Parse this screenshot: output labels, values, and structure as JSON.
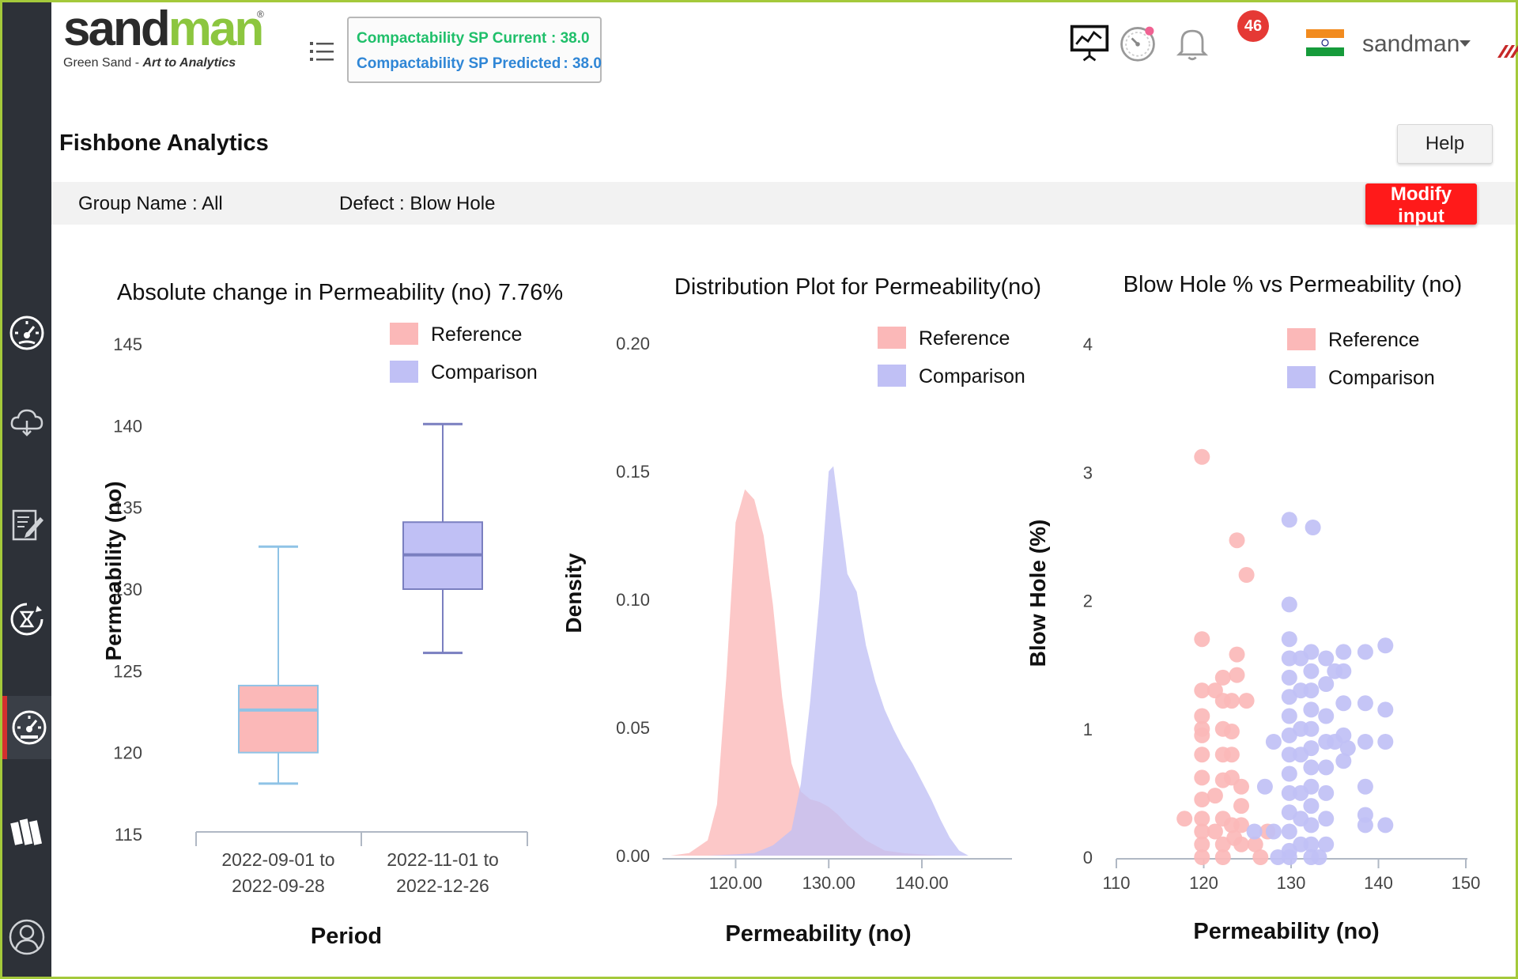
{
  "header": {
    "logo_word_a": "sand",
    "logo_word_b": "man",
    "logo_reg": "®",
    "logo_tag_plain": "Green Sand - ",
    "logo_tag_italic": "Art to Analytics",
    "sp_current_label": "Compactability SP Current",
    "sp_current_sep": ": 38.0",
    "sp_predicted_label": "Compactability SP Predicted",
    "sp_predicted_sep": ": 38.0",
    "notifications_count": "46",
    "user_name": "sandman"
  },
  "page": {
    "title": "Fishbone Analytics",
    "help_label": "Help",
    "group_name": "Group Name : All",
    "defect": "Defect : Blow Hole",
    "modify_label": "Modify input"
  },
  "colors": {
    "reference": "#fbb8b8",
    "comparison": "#c0c0f5",
    "accent": "#8cc63f",
    "badge": "#e53935",
    "modify": "#ff1a1a"
  },
  "sidebar": {
    "items": [
      {
        "icon": "dashboard-gauge-icon"
      },
      {
        "icon": "cloud-upload-icon"
      },
      {
        "icon": "edit-report-icon"
      },
      {
        "icon": "cycle-timer-icon"
      },
      {
        "icon": "analytics-gauge-icon",
        "active": true
      },
      {
        "icon": "books-icon"
      },
      {
        "icon": "user-profile-icon"
      }
    ]
  },
  "chart_data": [
    {
      "type": "box",
      "title": "Absolute change in Permeability (no) 7.76%",
      "xlabel": "Period",
      "ylabel": "Permeability (no)",
      "ylim": [
        115,
        145
      ],
      "yticks": [
        115,
        120,
        125,
        130,
        135,
        140,
        145
      ],
      "categories": [
        "2022-09-01 to 2022-09-28",
        "2022-11-01 to 2022-12-26"
      ],
      "category_lines": [
        [
          "2022-09-01 to",
          "2022-09-28"
        ],
        [
          "2022-11-01 to",
          "2022-12-26"
        ]
      ],
      "legend": [
        "Reference",
        "Comparison"
      ],
      "legend_position": "top-right",
      "series": [
        {
          "name": "Reference",
          "min": 118.1,
          "q1": 120.0,
          "median": 122.6,
          "q3": 124.1,
          "max": 132.6
        },
        {
          "name": "Comparison",
          "min": 126.1,
          "q1": 130.0,
          "median": 132.1,
          "q3": 134.1,
          "max": 140.1
        }
      ]
    },
    {
      "type": "area",
      "title": "Distribution Plot for Permeability(no)",
      "xlabel": "Permeability (no)",
      "ylabel": "Density",
      "xlim": [
        113,
        149
      ],
      "ylim": [
        0,
        0.2
      ],
      "xticks": [
        "120.00",
        "130.00",
        "140.00"
      ],
      "yticks": [
        "0.00",
        "0.05",
        "0.10",
        "0.15",
        "0.20"
      ],
      "legend": [
        "Reference",
        "Comparison"
      ],
      "legend_position": "top-right",
      "series": [
        {
          "name": "Reference",
          "x": [
            113,
            115,
            117,
            118,
            119,
            120,
            121,
            122,
            123,
            124,
            125,
            126,
            127,
            128,
            129,
            130,
            131,
            132,
            134,
            136,
            138,
            140,
            142
          ],
          "y": [
            0,
            0.001,
            0.006,
            0.02,
            0.07,
            0.13,
            0.143,
            0.139,
            0.125,
            0.098,
            0.062,
            0.036,
            0.025,
            0.022,
            0.021,
            0.019,
            0.016,
            0.012,
            0.006,
            0.002,
            0.001,
            0.0005,
            0
          ]
        },
        {
          "name": "Comparison",
          "x": [
            117,
            120,
            122,
            124,
            126,
            127,
            128,
            129,
            129.5,
            130,
            130.5,
            131,
            132,
            133,
            134,
            135,
            136,
            137,
            138,
            139,
            140,
            141,
            142,
            143,
            144,
            145
          ],
          "y": [
            0,
            0.0005,
            0.001,
            0.004,
            0.01,
            0.028,
            0.06,
            0.1,
            0.125,
            0.15,
            0.152,
            0.138,
            0.11,
            0.103,
            0.082,
            0.068,
            0.057,
            0.049,
            0.042,
            0.036,
            0.029,
            0.022,
            0.014,
            0.007,
            0.002,
            0
          ]
        }
      ]
    },
    {
      "type": "scatter",
      "title": "Blow Hole % vs Permeability (no)",
      "xlabel": "Permeability (no)",
      "ylabel": "Blow Hole (%)",
      "xlim": [
        110,
        150
      ],
      "ylim": [
        0,
        4
      ],
      "xticks": [
        110,
        120,
        130,
        140,
        150
      ],
      "yticks": [
        0,
        1,
        2,
        3,
        4
      ],
      "legend": [
        "Reference",
        "Comparison"
      ],
      "legend_position": "top-right",
      "series": [
        {
          "name": "Reference",
          "points": [
            [
              119.8,
              3.12
            ],
            [
              123.8,
              2.47
            ],
            [
              124.9,
              2.2
            ],
            [
              119.8,
              1.7
            ],
            [
              119.8,
              1.3
            ],
            [
              121.3,
              1.3
            ],
            [
              122.2,
              1.4
            ],
            [
              123.8,
              1.42
            ],
            [
              123.8,
              1.58
            ],
            [
              122.2,
              1.22
            ],
            [
              123.2,
              1.22
            ],
            [
              124.9,
              1.22
            ],
            [
              119.8,
              1.0
            ],
            [
              119.8,
              0.95
            ],
            [
              122.2,
              1.0
            ],
            [
              123.2,
              0.98
            ],
            [
              119.8,
              0.8
            ],
            [
              119.8,
              0.62
            ],
            [
              122.2,
              0.8
            ],
            [
              123.2,
              0.62
            ],
            [
              124.3,
              0.55
            ],
            [
              124.3,
              0.4
            ],
            [
              119.8,
              0.45
            ],
            [
              119.8,
              0.3
            ],
            [
              119.8,
              0.2
            ],
            [
              119.8,
              0.1
            ],
            [
              119.8,
              0.0
            ],
            [
              121.3,
              0.2
            ],
            [
              122.2,
              0.3
            ],
            [
              123.2,
              0.25
            ],
            [
              124.3,
              0.25
            ],
            [
              117.8,
              0.3
            ],
            [
              122.2,
              0.1
            ],
            [
              122.2,
              0.0
            ],
            [
              123.5,
              0.15
            ],
            [
              124.3,
              0.1
            ],
            [
              125.9,
              0.1
            ],
            [
              126.5,
              0.0
            ],
            [
              127.3,
              0.2
            ],
            [
              122.2,
              0.6
            ],
            [
              123.2,
              0.8
            ],
            [
              119.8,
              1.1
            ],
            [
              121.3,
              0.48
            ]
          ]
        },
        {
          "name": "Comparison",
          "points": [
            [
              129.8,
              2.63
            ],
            [
              132.5,
              2.57
            ],
            [
              129.8,
              1.97
            ],
            [
              129.8,
              1.7
            ],
            [
              129.8,
              1.55
            ],
            [
              129.8,
              1.4
            ],
            [
              129.8,
              1.25
            ],
            [
              129.8,
              1.1
            ],
            [
              129.8,
              0.95
            ],
            [
              129.8,
              0.8
            ],
            [
              129.8,
              0.65
            ],
            [
              129.8,
              0.5
            ],
            [
              129.8,
              0.35
            ],
            [
              129.8,
              0.2
            ],
            [
              129.8,
              0.05
            ],
            [
              129.8,
              0.0
            ],
            [
              132.3,
              1.6
            ],
            [
              132.3,
              1.45
            ],
            [
              132.3,
              1.3
            ],
            [
              132.3,
              1.15
            ],
            [
              132.3,
              1.0
            ],
            [
              132.3,
              0.85
            ],
            [
              132.3,
              0.7
            ],
            [
              132.3,
              0.55
            ],
            [
              132.3,
              0.4
            ],
            [
              132.3,
              0.25
            ],
            [
              132.3,
              0.1
            ],
            [
              132.3,
              0.0
            ],
            [
              131.1,
              1.55
            ],
            [
              131.1,
              1.3
            ],
            [
              131.1,
              1.0
            ],
            [
              131.1,
              0.8
            ],
            [
              131.1,
              0.5
            ],
            [
              131.1,
              0.3
            ],
            [
              131.1,
              0.1
            ],
            [
              134.0,
              1.55
            ],
            [
              134.0,
              1.35
            ],
            [
              134.0,
              1.1
            ],
            [
              134.0,
              0.9
            ],
            [
              134.0,
              0.7
            ],
            [
              134.0,
              0.5
            ],
            [
              134.0,
              0.3
            ],
            [
              134.0,
              0.1
            ],
            [
              136.0,
              1.6
            ],
            [
              136.0,
              1.45
            ],
            [
              136.0,
              1.2
            ],
            [
              136.0,
              0.95
            ],
            [
              136.0,
              0.75
            ],
            [
              135.0,
              1.45
            ],
            [
              135.0,
              0.9
            ],
            [
              136.5,
              0.85
            ],
            [
              138.5,
              1.6
            ],
            [
              138.5,
              1.2
            ],
            [
              138.5,
              0.9
            ],
            [
              138.5,
              0.55
            ],
            [
              138.5,
              0.33
            ],
            [
              138.5,
              0.25
            ],
            [
              140.8,
              1.65
            ],
            [
              140.8,
              1.15
            ],
            [
              140.8,
              0.9
            ],
            [
              140.8,
              0.25
            ],
            [
              128.0,
              0.9
            ],
            [
              128.0,
              0.2
            ],
            [
              127.0,
              0.55
            ],
            [
              125.8,
              0.2
            ],
            [
              128.5,
              0.0
            ],
            [
              133.2,
              0.0
            ]
          ]
        }
      ]
    }
  ]
}
